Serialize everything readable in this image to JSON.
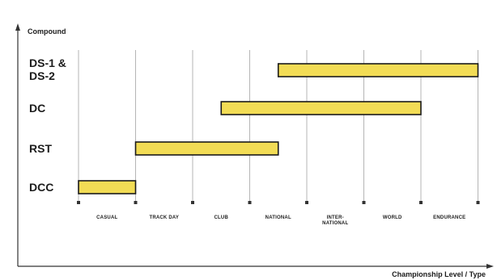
{
  "chart_data": {
    "type": "bar",
    "orientation": "horizontal-range",
    "ylabel": "Compound",
    "xlabel": "Championship Level / Type",
    "x_categories": [
      "CASUAL",
      "TRACK DAY",
      "CLUB",
      "NATIONAL",
      "INTER-NATIONAL",
      "WORLD",
      "ENDURANCE"
    ],
    "y_categories": [
      "DS-1 & DS-2",
      "DC",
      "RST",
      "DCC"
    ],
    "bars": [
      {
        "category": "DS-1 & DS-2",
        "start": 3.5,
        "end": 7.0
      },
      {
        "category": "DC",
        "start": 2.5,
        "end": 6.0
      },
      {
        "category": "RST",
        "start": 1.0,
        "end": 3.5
      },
      {
        "category": "DCC",
        "start": 0.0,
        "end": 1.0
      }
    ],
    "colors": {
      "bar_fill": "#f2dc55",
      "bar_stroke": "#1a1a1a",
      "grid": "#b5b5b5",
      "axis": "#333333"
    },
    "grid": "vertical"
  }
}
